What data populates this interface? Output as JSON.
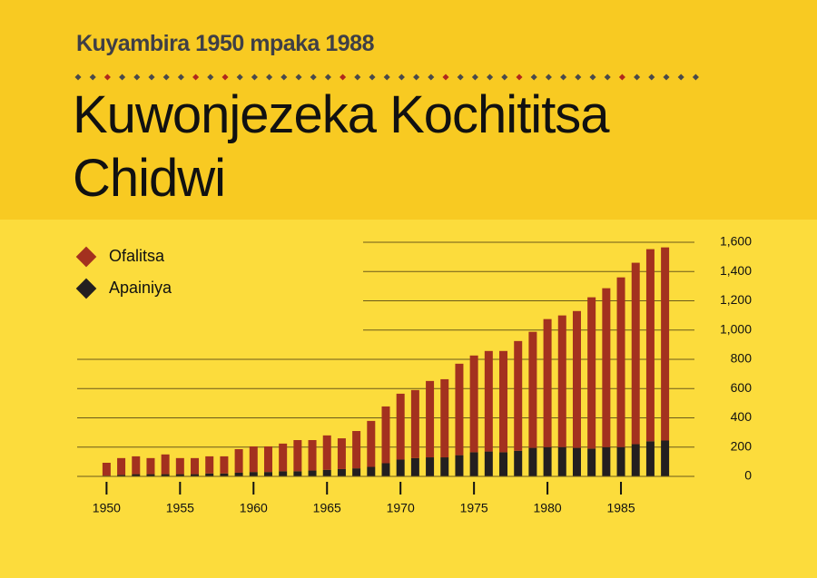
{
  "chart_data": {
    "type": "bar",
    "stacked": true,
    "subtitle": "Kuyambira 1950 mpaka 1988",
    "title": "Kuwonjezeka Kochititsa Chidwi",
    "x": [
      1950,
      1951,
      1952,
      1953,
      1954,
      1955,
      1956,
      1957,
      1958,
      1959,
      1960,
      1961,
      1962,
      1963,
      1964,
      1965,
      1966,
      1967,
      1968,
      1969,
      1970,
      1971,
      1972,
      1973,
      1974,
      1975,
      1976,
      1977,
      1978,
      1979,
      1980,
      1981,
      1982,
      1983,
      1984,
      1985,
      1986,
      1987,
      1988
    ],
    "series": [
      {
        "name": "Ofalitsa",
        "color": "#a3311f",
        "values": [
          88,
          115,
          122,
          110,
          135,
          110,
          110,
          117,
          117,
          161,
          175,
          175,
          189,
          213,
          208,
          235,
          210,
          255,
          314,
          388,
          450,
          465,
          522,
          534,
          625,
          661,
          687,
          692,
          750,
          793,
          875,
          900,
          935,
          1034,
          1086,
          1160,
          1240,
          1313,
          1320
        ]
      },
      {
        "name": "Apainiya",
        "color": "#231f20",
        "values": [
          5,
          10,
          15,
          15,
          15,
          15,
          15,
          20,
          20,
          25,
          30,
          30,
          35,
          35,
          40,
          45,
          50,
          55,
          65,
          90,
          115,
          125,
          130,
          130,
          145,
          165,
          170,
          165,
          175,
          195,
          200,
          200,
          195,
          190,
          200,
          200,
          220,
          240,
          245
        ]
      }
    ],
    "xlim": [
      1948,
      1990
    ],
    "xticks": [
      1950,
      1955,
      1960,
      1965,
      1970,
      1975,
      1980,
      1985
    ],
    "ylim": [
      0,
      1600
    ],
    "yticks": [
      0,
      200,
      400,
      600,
      800,
      {
        "value": 1000,
        "label": "1,000"
      },
      {
        "value": 1200,
        "label": "1,200"
      },
      {
        "value": 1400,
        "label": "1,400"
      },
      {
        "value": 1600,
        "label": "1,600"
      }
    ],
    "grid": true,
    "legend": "top-left"
  }
}
